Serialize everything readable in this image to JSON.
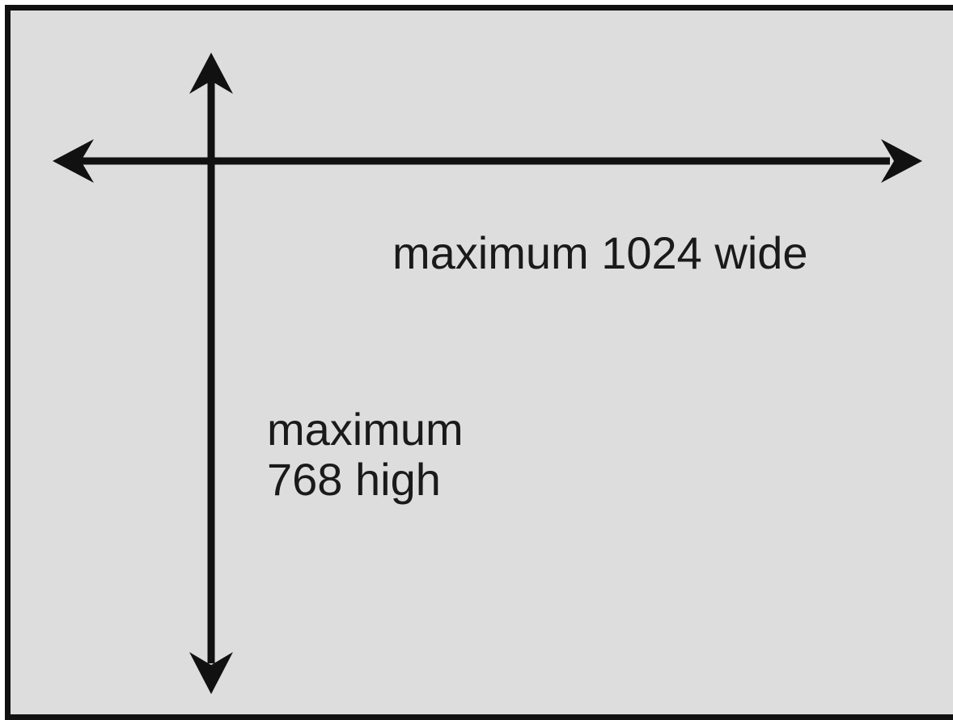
{
  "diagram": {
    "colors": {
      "background": "#dddddd",
      "border": "#111111",
      "arrow": "#111111",
      "text": "#1a1a1a"
    },
    "labels": {
      "width": "maximum 1024 wide",
      "height_line1": "maximum",
      "height_line2": "768 high"
    },
    "arrows": {
      "horizontal_icon": "double-headed-horizontal-arrow",
      "vertical_icon": "double-headed-vertical-arrow"
    }
  }
}
